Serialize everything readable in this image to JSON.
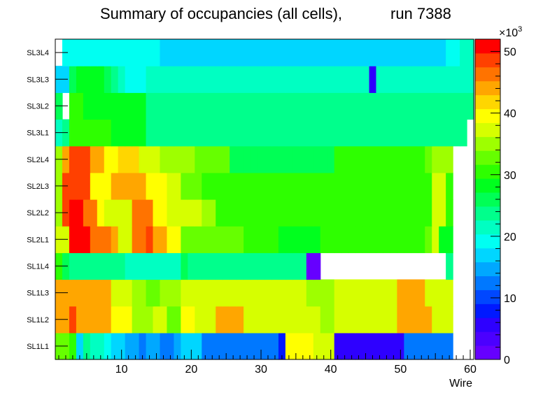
{
  "chart_data": {
    "type": "heatmap",
    "title": "Summary of occupancies (all cells),",
    "run_label": "run 7388",
    "xlabel": "Wire",
    "x_ticks": [
      "10",
      "20",
      "30",
      "40",
      "50",
      "60"
    ],
    "xlim": [
      0.5,
      60.5
    ],
    "rows": [
      "SL1L1",
      "SL1L2",
      "SL1L3",
      "SL1L4",
      "SL2L1",
      "SL2L2",
      "SL2L3",
      "SL2L4",
      "SL3L1",
      "SL3L2",
      "SL3L3",
      "SL3L4"
    ],
    "z_ticks": [
      "0",
      "10",
      "20",
      "30",
      "40",
      "50"
    ],
    "z_exponent": "×10",
    "z_exponent_power": "3",
    "zlim": [
      0,
      52
    ],
    "z_units_thousands": true,
    "cells": [
      [
        32,
        32,
        30,
        18,
        24,
        22,
        21,
        20,
        18,
        17,
        14,
        14,
        12,
        14,
        14,
        12,
        12,
        14,
        16,
        16,
        16,
        13,
        13,
        13,
        12,
        12,
        12,
        12,
        12,
        12,
        12,
        12,
        9,
        40,
        40,
        40,
        40,
        37,
        37,
        37,
        6,
        6,
        6,
        6,
        6,
        6,
        6,
        6,
        6,
        6,
        12,
        12,
        12,
        12,
        12,
        12,
        12,
        null,
        null,
        null
      ],
      [
        45,
        45,
        49,
        45,
        45,
        45,
        45,
        45,
        39,
        39,
        39,
        36,
        36,
        36,
        38,
        38,
        33,
        33,
        40,
        40,
        38,
        38,
        38,
        43,
        43,
        45,
        43,
        38,
        38,
        38,
        38,
        38,
        38,
        38,
        38,
        38,
        38,
        38,
        36,
        36,
        38,
        38,
        38,
        38,
        38,
        38,
        38,
        38,
        38,
        45,
        45,
        45,
        45,
        45,
        38,
        38,
        38,
        null,
        null,
        null
      ],
      [
        45,
        45,
        45,
        45,
        43,
        43,
        43,
        43,
        38,
        38,
        38,
        36,
        36,
        33,
        33,
        35,
        36,
        36,
        38,
        38,
        38,
        38,
        38,
        38,
        38,
        38,
        38,
        38,
        38,
        38,
        38,
        38,
        38,
        38,
        38,
        38,
        36,
        36,
        36,
        36,
        38,
        38,
        38,
        38,
        38,
        38,
        38,
        38,
        38,
        43,
        43,
        43,
        43,
        38,
        38,
        38,
        38,
        null,
        null,
        null
      ],
      [
        30,
        26,
        24,
        24,
        24,
        24,
        24,
        24,
        24,
        24,
        22,
        22,
        22,
        22,
        22,
        22,
        22,
        22,
        26,
        24,
        24,
        24,
        24,
        24,
        24,
        24,
        24,
        24,
        24,
        24,
        24,
        24,
        24,
        24,
        24,
        24,
        2,
        2,
        null,
        null,
        null,
        null,
        null,
        null,
        null,
        null,
        null,
        null,
        null,
        null,
        null,
        null,
        null,
        null,
        null,
        null,
        24,
        null,
        null,
        null
      ],
      [
        38,
        38,
        51,
        51,
        51,
        46,
        46,
        46,
        43,
        38,
        38,
        46,
        46,
        49,
        44,
        44,
        39,
        39,
        32,
        32,
        32,
        33,
        33,
        33,
        33,
        33,
        33,
        31,
        31,
        31,
        30,
        30,
        29,
        29,
        29,
        29,
        29,
        28,
        31,
        31,
        31,
        31,
        31,
        31,
        31,
        31,
        31,
        31,
        31,
        31,
        31,
        31,
        31,
        33,
        37,
        28,
        28,
        null,
        null,
        null
      ],
      [
        35,
        49,
        51,
        51,
        46,
        46,
        40,
        37,
        37,
        37,
        37,
        46,
        46,
        46,
        40,
        40,
        38,
        38,
        38,
        38,
        38,
        34,
        34,
        31,
        31,
        31,
        31,
        31,
        31,
        31,
        31,
        31,
        31,
        31,
        31,
        31,
        31,
        31,
        31,
        31,
        31,
        31,
        31,
        31,
        31,
        31,
        31,
        31,
        31,
        31,
        31,
        31,
        31,
        31,
        38,
        38,
        31,
        null,
        null,
        null
      ],
      [
        35,
        49,
        49,
        49,
        49,
        40,
        40,
        40,
        44,
        44,
        44,
        44,
        44,
        40,
        40,
        40,
        38,
        38,
        32,
        32,
        32,
        30,
        30,
        30,
        30,
        30,
        30,
        30,
        30,
        30,
        30,
        30,
        30,
        30,
        30,
        30,
        30,
        30,
        30,
        30,
        30,
        30,
        30,
        30,
        30,
        30,
        30,
        30,
        30,
        30,
        30,
        30,
        30,
        30,
        37,
        37,
        30,
        null,
        null,
        null
      ],
      [
        35,
        44,
        49,
        49,
        49,
        44,
        44,
        39,
        39,
        41,
        41,
        41,
        37,
        37,
        37,
        35,
        35,
        35,
        34,
        34,
        33,
        33,
        33,
        33,
        33,
        27,
        27,
        27,
        27,
        27,
        27,
        27,
        27,
        27,
        27,
        27,
        27,
        27,
        27,
        27,
        30,
        30,
        30,
        30,
        30,
        30,
        30,
        30,
        30,
        30,
        30,
        30,
        30,
        33,
        35,
        35,
        35,
        null,
        null,
        null
      ],
      [
        22,
        24,
        30,
        30,
        30,
        30,
        30,
        30,
        28,
        28,
        28,
        28,
        28,
        24,
        24,
        24,
        24,
        24,
        24,
        24,
        24,
        24,
        24,
        24,
        24,
        24,
        24,
        24,
        24,
        24,
        24,
        24,
        24,
        24,
        24,
        24,
        24,
        24,
        24,
        24,
        24,
        24,
        24,
        24,
        24,
        24,
        24,
        24,
        24,
        24,
        24,
        24,
        24,
        24,
        24,
        24,
        24,
        24,
        24,
        null
      ],
      [
        26,
        null,
        30,
        30,
        28,
        28,
        28,
        28,
        28,
        28,
        28,
        28,
        28,
        24,
        24,
        24,
        24,
        24,
        24,
        24,
        24,
        24,
        24,
        24,
        24,
        24,
        24,
        24,
        24,
        24,
        24,
        24,
        24,
        24,
        24,
        24,
        24,
        24,
        24,
        24,
        24,
        24,
        24,
        24,
        24,
        24,
        24,
        24,
        24,
        24,
        24,
        24,
        24,
        24,
        24,
        24,
        24,
        24,
        24,
        24
      ],
      [
        16,
        16,
        26,
        28,
        28,
        28,
        28,
        26,
        24,
        22,
        20,
        20,
        20,
        22,
        22,
        22,
        22,
        22,
        22,
        22,
        22,
        22,
        22,
        22,
        22,
        22,
        22,
        22,
        22,
        22,
        22,
        22,
        22,
        22,
        22,
        22,
        22,
        22,
        22,
        22,
        22,
        22,
        22,
        22,
        22,
        5,
        22,
        22,
        22,
        22,
        22,
        22,
        22,
        22,
        22,
        22,
        22,
        22,
        22,
        22
      ],
      [
        null,
        20,
        20,
        20,
        20,
        20,
        20,
        20,
        20,
        20,
        20,
        20,
        20,
        20,
        20,
        18,
        18,
        18,
        18,
        18,
        18,
        18,
        18,
        18,
        18,
        18,
        18,
        18,
        18,
        18,
        18,
        18,
        18,
        18,
        18,
        18,
        18,
        18,
        18,
        18,
        18,
        18,
        18,
        18,
        18,
        18,
        18,
        18,
        18,
        18,
        18,
        18,
        18,
        18,
        18,
        18,
        20,
        20,
        22,
        22
      ]
    ]
  }
}
